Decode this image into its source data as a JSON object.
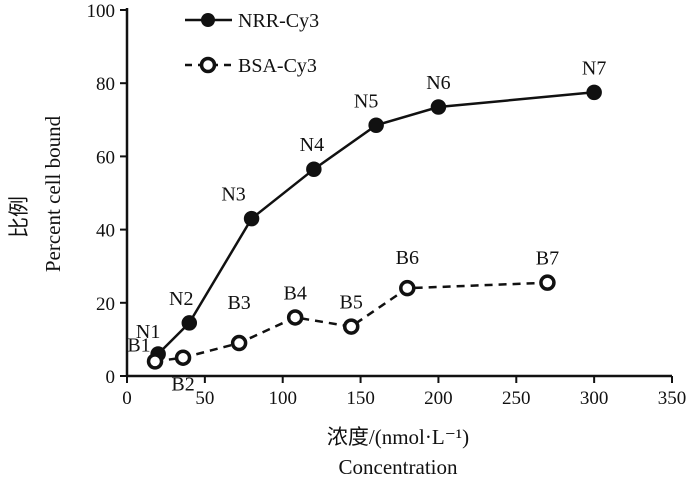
{
  "chart_data": {
    "type": "line",
    "title": "",
    "xlabel": "浓度/(nmol·L⁻¹)",
    "xlabel_en": "Concentration",
    "ylabel": "比例",
    "ylabel_en": "Percent cell bound",
    "xlim": [
      0,
      350
    ],
    "ylim": [
      0,
      100
    ],
    "xticks": [
      0,
      50,
      100,
      150,
      200,
      250,
      300,
      350
    ],
    "yticks": [
      0,
      20,
      40,
      60,
      80,
      100
    ],
    "grid": false,
    "legend_position": "top-left",
    "series": [
      {
        "name": "NRR-Cy3",
        "style": "solid",
        "marker": "filled-circle",
        "color": "#111111",
        "points": [
          {
            "label": "N1",
            "x": 20,
            "y": 6
          },
          {
            "label": "N2",
            "x": 40,
            "y": 14.5
          },
          {
            "label": "N3",
            "x": 80,
            "y": 43
          },
          {
            "label": "N4",
            "x": 120,
            "y": 56.5
          },
          {
            "label": "N5",
            "x": 160,
            "y": 68.5
          },
          {
            "label": "N6",
            "x": 200,
            "y": 73.5
          },
          {
            "label": "N7",
            "x": 300,
            "y": 77.5
          }
        ]
      },
      {
        "name": "BSA-Cy3",
        "style": "dashed",
        "marker": "open-circle",
        "color": "#111111",
        "points": [
          {
            "label": "B1",
            "x": 18,
            "y": 4
          },
          {
            "label": "B2",
            "x": 36,
            "y": 5
          },
          {
            "label": "B3",
            "x": 72,
            "y": 9
          },
          {
            "label": "B4",
            "x": 108,
            "y": 16
          },
          {
            "label": "B5",
            "x": 144,
            "y": 13.5
          },
          {
            "label": "B6",
            "x": 180,
            "y": 24
          },
          {
            "label": "B7",
            "x": 270,
            "y": 25.5
          }
        ]
      }
    ]
  }
}
